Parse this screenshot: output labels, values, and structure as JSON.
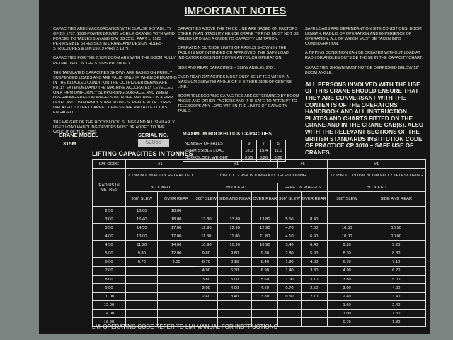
{
  "title": "IMPORTANT NOTES",
  "left_notes": [
    "CAPACITIES ARE IN ACCORDANCE WITH CLAUSE 9-STABILITY OF BS 1757: 1986-POWER DRIVEN MOBILE CRANES WITH WIND FORCES TO TABLES 5(A) AND 6(A) BS 2573: PART 1: 1983 PERMISSIBLE STRESSES IN CRANE AND DESIGN RULES-STRUCTURES & DIN 15019 PART 2 1979.",
    "CAPACITIES FOR THE 7.78M BOOM ARE WITH THE BOOM FULLY RETRACTED ON THE STOPS PROVIDED.",
    "THE TABULATED CAPACITIES SHOWN ARE BASED ON FREELY SUSPENDED LOADS AND ARE VALID ONLY IF, WHEN OPERATING IN THE BLOCKED CONDITION THE OUTRIGGER BEAMS ARE FULLY EXTENDED AND THE MACHINE ACCURATELY LEVELLED ON A FIRM UNIFORMLY SUPPORTING SURFACE, AND WHEN OPERATING FREE ON WHEELS WITH THE MACHINE ON A FIRM LEVEL AND UNIFORMLY SUPPORTING SURFACE WITH TYRES INFLATED TO THE CLARRECT PRESSURE AND AXLE LOCKS ENGAGED.",
    "THE WEIGHT OF THE HOOKBLOCK, SLINGS AND ALL SIMILARLY USED LOAD HANDLING DEVICES MUST BE ADDED TO THE WEIGHT OF THE LOAD."
  ],
  "middle_notes": [
    "CAPACITIES ABOVE THE THICK LINE ARE BASED ON FACTORS OTHER THAN STABILITY HENCE CRANE TIPPING MUST NOT BE RELIED UPON AS A GUIDE TO CAPACITY LIMITATION.",
    "OPERATION OUTSIDE LIMITS OF RADIUS SHOWN IN THE TABLE IS NOT INTENDED OR APPROVED. THE SAFE LOAD INDICATOR DOES NOT COVER ANY SUCH OPERATION.",
    "SIDE AND REAR CAPACITIES – SLEW ANGLE± 270˚.",
    "OVER REAR CAPACITIES MUST ONLY BE LIFTED WITHIN A MAXIMUM SLEWING ANGLE OF 5˚ EITHER SIDE OF CENTRE LINE.",
    "BOOM TELESCOPING CAPACITIES ARE DETERMINED BY BOOM ANGLE AND OTHER FACTORS AND IT IS SAFE TO ATTEMPT TO TELESCOPE ANY LOAD WITHIN THE LIMITS OF CAPACITY TABLE."
  ],
  "right_notes": [
    "SAFE LOADS ARE DEPENDANT ON SITE CONDITIONS, BOOM LENGTH, RADIUS OF OPERATION AND EXPERIENCE OF OPERATION. ALL OF WHICH MUST BE TAKEN INTO CONSIDERATION.",
    "A TIPPING CONDITION CAN BE CREATED WITHOUT LOAD AT RADII OR ANGLES OUTSIDE THOSE IN THE CAPACITY CHART.",
    "CAPACITIES SHOWN MUST NOT BE DERRICKED BELOW 12˚ BOOM ANGLE."
  ],
  "warning": "ALL PERSONS INVOLVED WITH THE USE OF THIS CRANE SHOULD ENSURE THAT THEY ARE CONVERSANT WITH THE CONTENTS OF THE OPERATORS HANDBOOK AND ALL INSTRUCTION PLATES AND CHARTS FITTED ON THE CRANE AND IN THE CRANE CAB(S). ALSO WITH THE RELEVANT SECTIONS OF THE BRITISH STANDARDS INSTITUTION CODE OF PRACTICE CP 3010 – SAFE USE OF CRANES.",
  "crane": {
    "model_label": "CRANE MODEL",
    "model": "315M",
    "serial_label": "SERIAL NO.",
    "serial": "52086"
  },
  "hookblock": {
    "title": "MAXIMUM HOOKBLOCK CAPACITIES",
    "rows": [
      [
        "NUMBER OF FALLS",
        "9",
        "7",
        "5"
      ],
      [
        "PERMISSIBLE LOAD",
        "18.0",
        "15.4",
        "11.0"
      ],
      [
        "HOOKBLOCK WEIGHT",
        "0.26",
        "0.26",
        "0.26"
      ]
    ]
  },
  "capacities": {
    "title": "LIFTING CAPACITIES IN TONNES",
    "header": [
      [
        "LMI CODE",
        "#1",
        "#1",
        "#6",
        "#1"
      ],
      [
        "RADIUS IN METRES",
        "7.78M BOOM FULLY RETRACTED",
        "7.78M TO 12.95M BOOM FULLY TELESCOPING",
        "12.95M TO 19.05M BOOM FULLY TELESCOPING"
      ],
      [
        "BLOCKED",
        "BLOCKED",
        "FREE ON WHEELS",
        "BLOCKED"
      ],
      [
        "360˚ SLEW",
        "OVER REAR",
        "360˚ SLEW",
        "SIDE AND REAR",
        "OVER REAR",
        "360˚ SLEW",
        "OVER REAR",
        "360˚ SLEW",
        "SIDE AND REAR"
      ]
    ],
    "rows": [
      [
        "2.50",
        "18.00",
        "18.00",
        null,
        null,
        null,
        null,
        null,
        null,
        null
      ],
      [
        "3.00",
        "16.40",
        "18.00",
        "13.80",
        "13.80",
        "13.80",
        "5.50",
        "8.40",
        null,
        null
      ],
      [
        "3.50",
        "14.50",
        "17.60",
        "12.90",
        "12.90",
        "12.90",
        "4.70",
        "7.60",
        "10.50",
        "10.50"
      ],
      [
        "4.00",
        "13.00",
        "17.00",
        "11.80",
        "11.80",
        "11.80",
        "4.10",
        "6.90",
        "10.00",
        "10.00"
      ],
      [
        "4.50",
        "11.20",
        "14.00",
        "10.90",
        "10.90",
        "10.90",
        "3.40",
        "6.40",
        "9.20",
        "9.20"
      ],
      [
        "5.00",
        "9.80",
        "12.00",
        "9.80",
        "9.80",
        "9.80",
        "2.80",
        "5.90",
        "8.30",
        "8.30"
      ],
      [
        "6.00",
        "6.70",
        "9.00",
        "6.70",
        "8.10",
        "8.40",
        "1.90",
        "4.80",
        "6.70",
        "7.10"
      ],
      [
        "7.00",
        null,
        null,
        "4.90",
        "6.30",
        "6.90",
        "1.40",
        "3.80",
        "4.90",
        "6.20"
      ],
      [
        "8.00",
        null,
        null,
        "3.80",
        "5.00",
        "5.60",
        "1.00",
        "3.10",
        "3.80",
        "5.00"
      ],
      [
        "9.00",
        null,
        null,
        "3.00",
        "4.00",
        "4.60",
        "0.70",
        "2.50",
        "3.00",
        "4.00"
      ],
      [
        "10.00",
        null,
        null,
        "2.40",
        "3.40",
        "3.80",
        "0.50",
        "2.10",
        "2.40",
        "3.40"
      ],
      [
        "12.00",
        null,
        null,
        null,
        null,
        null,
        null,
        null,
        "1.60",
        "2.40"
      ],
      [
        "14.00",
        null,
        null,
        null,
        null,
        null,
        null,
        null,
        "1.00",
        "1.80"
      ],
      [
        "16.00",
        null,
        null,
        null,
        null,
        null,
        null,
        null,
        "0.70",
        "1.30"
      ]
    ]
  },
  "footer": "LMI OPERATING CODE REFER TO LMI MANUAL FOR INSTRUCTIONS"
}
